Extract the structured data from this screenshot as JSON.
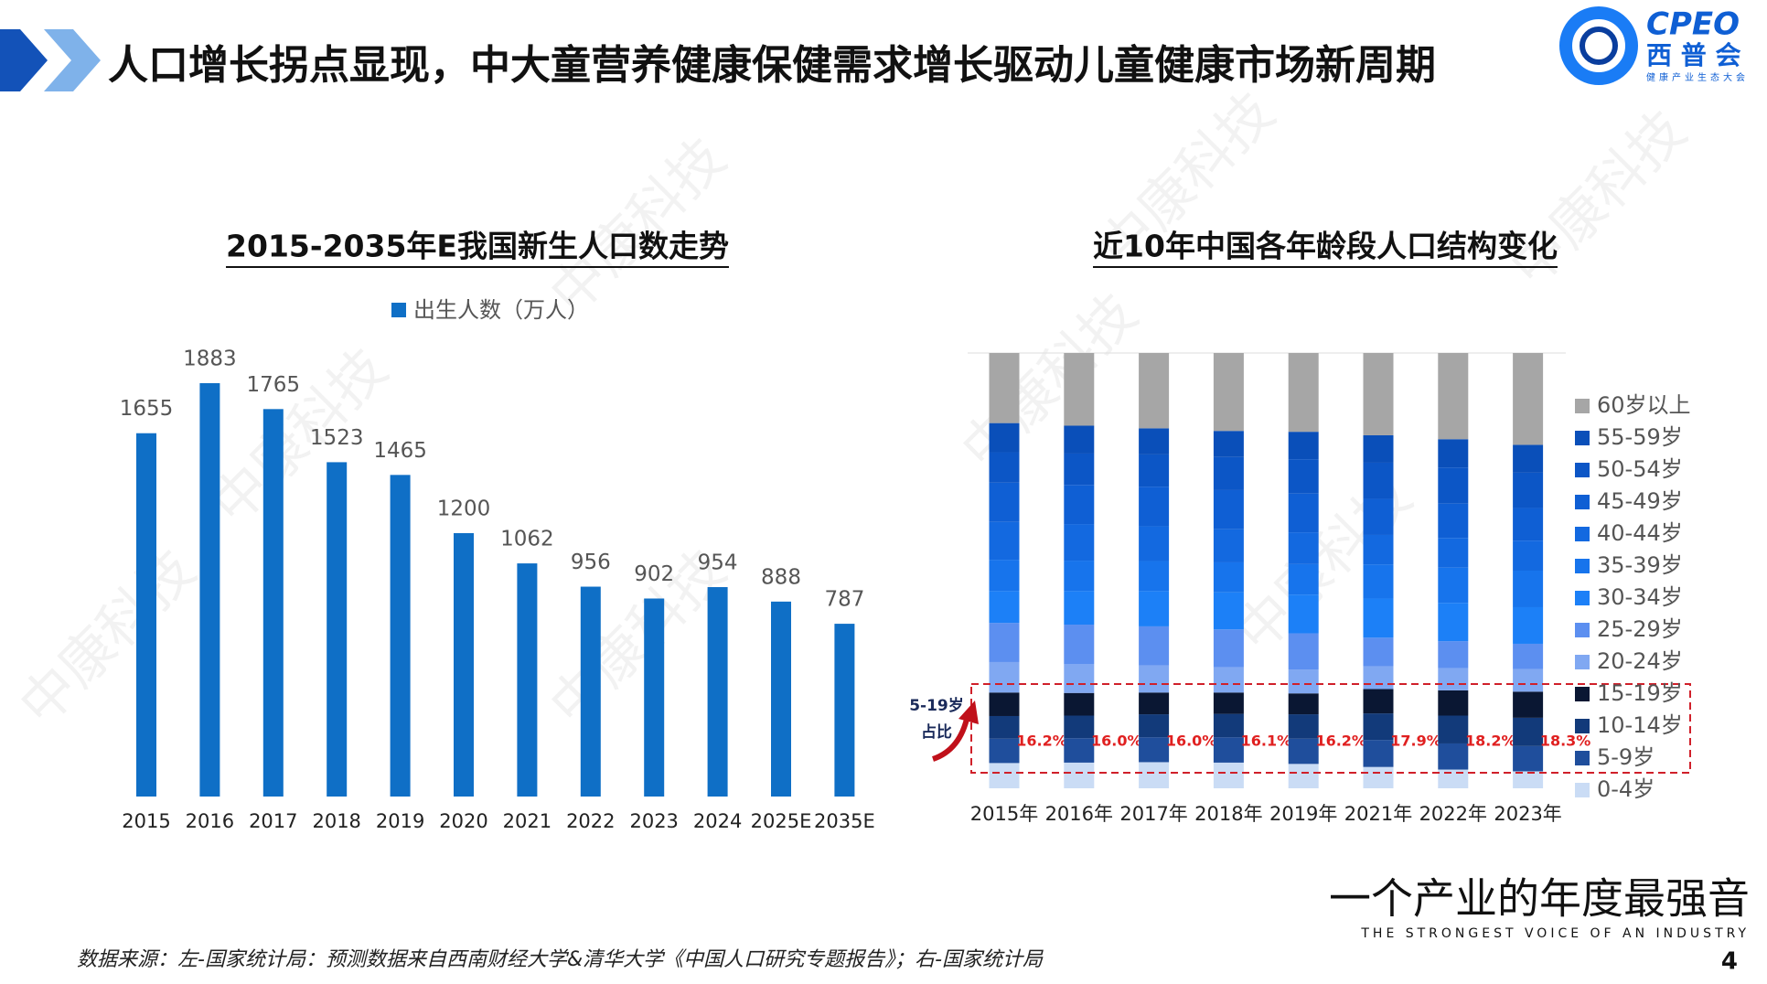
{
  "header": {
    "title": "人口增长拐点显现，中大童营养健康保健需求增长驱动儿童健康市场新周期"
  },
  "logo": {
    "brand": "CPEO",
    "name": "西 普 会",
    "tagline": "健康产业生态大会"
  },
  "chart_data": [
    {
      "type": "bar",
      "title": "2015-2035年E我国新生人口数走势",
      "legend": "出生人数（万人）",
      "color": "#0f6fc6",
      "categories": [
        "2015",
        "2016",
        "2017",
        "2018",
        "2019",
        "2020",
        "2021",
        "2022",
        "2023",
        "2024",
        "2025E",
        "2035E"
      ],
      "values": [
        1655,
        1883,
        1765,
        1523,
        1465,
        1200,
        1062,
        956,
        902,
        954,
        888,
        787
      ]
    },
    {
      "type": "stacked-bar",
      "title": "近10年中国各年龄段人口结构变化",
      "categories": [
        "2015年",
        "2016年",
        "2017年",
        "2018年",
        "2019年",
        "2021年",
        "2022年",
        "2023年"
      ],
      "series": [
        {
          "name": "0-4岁",
          "color": "#cadcf5",
          "values": [
            5.8,
            5.9,
            6.0,
            5.9,
            5.6,
            4.9,
            4.3,
            3.9
          ]
        },
        {
          "name": "5-9岁",
          "color": "#1f4e9c",
          "values": [
            5.6,
            5.6,
            5.7,
            5.8,
            5.8,
            6.2,
            6.0,
            5.8
          ]
        },
        {
          "name": "10-14岁",
          "color": "#123a7a",
          "values": [
            5.2,
            5.2,
            5.3,
            5.4,
            5.6,
            6.1,
            6.4,
            6.5
          ]
        },
        {
          "name": "15-19岁",
          "color": "#0a1733",
          "values": [
            5.4,
            5.2,
            5.0,
            4.9,
            4.8,
            5.6,
            5.8,
            6.0
          ]
        },
        {
          "name": "20-24岁",
          "color": "#80a8f2",
          "values": [
            7.0,
            6.6,
            6.2,
            5.8,
            5.5,
            5.2,
            5.1,
            5.2
          ]
        },
        {
          "name": "25-29岁",
          "color": "#5c8ff0",
          "values": [
            9.0,
            9.1,
            9.0,
            8.7,
            8.3,
            6.6,
            6.2,
            5.8
          ]
        },
        {
          "name": "30-34岁",
          "color": "#1c80f7",
          "values": [
            7.3,
            7.7,
            8.1,
            8.5,
            8.9,
            9.0,
            8.8,
            8.4
          ]
        },
        {
          "name": "35-39岁",
          "color": "#1774ec",
          "values": [
            7.2,
            7.0,
            6.9,
            6.9,
            7.0,
            7.8,
            8.1,
            8.4
          ]
        },
        {
          "name": "40-44岁",
          "color": "#1369e0",
          "values": [
            8.7,
            8.4,
            8.0,
            7.6,
            7.3,
            6.8,
            6.8,
            6.9
          ]
        },
        {
          "name": "45-49岁",
          "color": "#0f5fd4",
          "values": [
            9.0,
            9.0,
            9.1,
            9.0,
            8.9,
            8.3,
            7.9,
            7.5
          ]
        },
        {
          "name": "50-54岁",
          "color": "#0c56c6",
          "values": [
            7.0,
            7.2,
            7.4,
            7.6,
            7.9,
            8.3,
            8.3,
            8.1
          ]
        },
        {
          "name": "55-59岁",
          "color": "#0a4fb9",
          "values": [
            6.7,
            6.4,
            6.0,
            6.0,
            6.3,
            6.3,
            6.5,
            6.4
          ]
        },
        {
          "name": "60岁以上",
          "color": "#a6a6a6",
          "values": [
            16.1,
            16.7,
            17.3,
            17.9,
            18.1,
            18.9,
            19.8,
            21.1
          ]
        }
      ],
      "share": {
        "values": [
          16.2,
          16.0,
          16.0,
          16.1,
          16.2,
          17.9,
          18.2,
          18.3
        ],
        "value_labels": [
          "16.2%",
          "16.0%",
          "16.0%",
          "16.1%",
          "16.2%",
          "17.9%",
          "18.2%",
          "18.3%"
        ]
      },
      "annotation": [
        "5-19岁",
        "占比"
      ]
    }
  ],
  "watermark": "中康科技",
  "footer": {
    "source": "数据来源：左-国家统计局：预测数据来自西南财经大学&清华大学《中国人口研究专题报告》；右-国家统计局",
    "slogan": "一个产业的年度最强音",
    "slogan_en": "THE STRONGEST VOICE OF AN INDUSTRY",
    "page": "4"
  }
}
